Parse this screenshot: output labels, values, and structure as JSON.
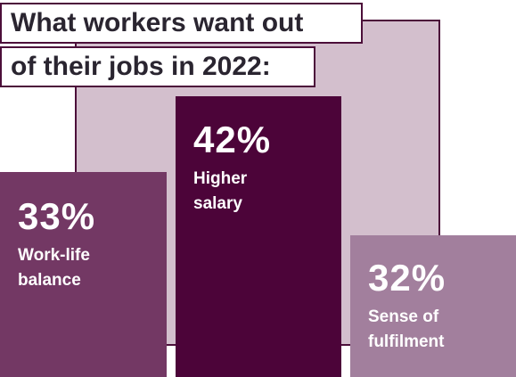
{
  "title_lines": [
    "What workers want out",
    "of their jobs in 2022:"
  ],
  "colors": {
    "backdrop": "#d3bfcd",
    "outline": "#4c0f3a",
    "bars": [
      "#733864",
      "#4c0439",
      "#a27f9d"
    ]
  },
  "chart_data": {
    "type": "bar",
    "title": "What workers want out of their jobs in 2022:",
    "categories": [
      "Work-life balance",
      "Higher salary",
      "Sense of fulfilment"
    ],
    "values": [
      33,
      42,
      32
    ],
    "value_labels": [
      "33%",
      "42%",
      "32%"
    ],
    "unit": "%",
    "grid": false
  }
}
